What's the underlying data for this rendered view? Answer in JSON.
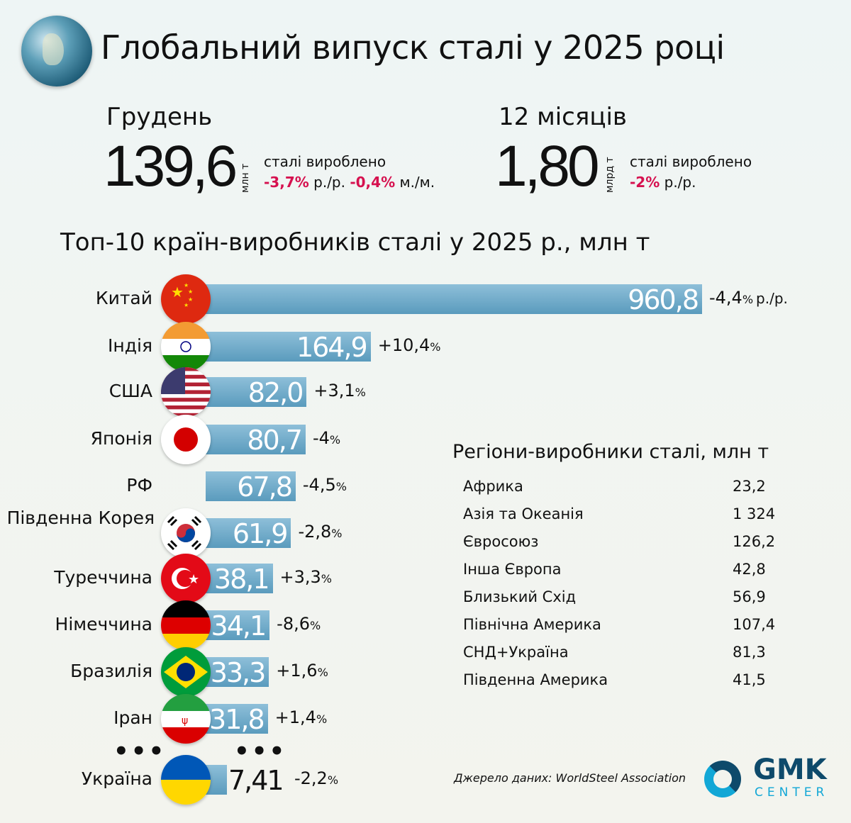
{
  "title": "Глобальний випуск сталі у 2025 році",
  "december": {
    "label": "Грудень",
    "value": "139,6",
    "unit": "млн т",
    "produced": "сталі вироблено",
    "yoy": "-3,7%",
    "yoy_suffix": "р./р.",
    "mom": "-0,4%",
    "mom_suffix": "м./м."
  },
  "year": {
    "label": "12 місяців",
    "value": "1,80",
    "unit": "млрд т",
    "produced": "сталі вироблено",
    "yoy": "-2%",
    "yoy_suffix": "р./р."
  },
  "chart_data": {
    "type": "bar",
    "title": "Топ-10 країн-виробників сталі у 2025 р., млн т",
    "categories": [
      "Китай",
      "Індія",
      "США",
      "Японія",
      "РФ",
      "Південна Корея",
      "Туреччина",
      "Німеччина",
      "Бразилія",
      "Іран",
      "Україна"
    ],
    "values": [
      960.8,
      164.9,
      82.0,
      80.7,
      67.8,
      61.9,
      38.1,
      34.1,
      33.3,
      31.8,
      7.41
    ],
    "value_labels": [
      "960,8",
      "164,9",
      "82,0",
      "80,7",
      "67,8",
      "61,9",
      "38,1",
      "34,1",
      "33,3",
      "31,8",
      "7,41"
    ],
    "changes": [
      "-4,4",
      "+10,4",
      "+3,1",
      "-4",
      "-4,5",
      "-2,8",
      "+3,3",
      "-8,6",
      "+1,6",
      "+1,4",
      "-2,2"
    ],
    "china_change_suffix": "р./р.",
    "flags": [
      "china",
      "india",
      "usa",
      "japan",
      "none",
      "south-korea",
      "turkey",
      "germany",
      "brazil",
      "iran",
      "ukraine"
    ],
    "bar_color": "#6aa8c8"
  },
  "ellipsis": "•••",
  "regions": {
    "title": "Регіони-виробники сталі, млн т",
    "items": [
      {
        "name": "Африка",
        "value": "23,2"
      },
      {
        "name": "Азія та Океанія",
        "value": "1 324"
      },
      {
        "name": "Євросоюз",
        "value": "126,2"
      },
      {
        "name": "Інша Європа",
        "value": "42,8"
      },
      {
        "name": "Близький Схід",
        "value": "56,9"
      },
      {
        "name": "Північна Америка",
        "value": "107,4"
      },
      {
        "name": "СНД+Україна",
        "value": "81,3"
      },
      {
        "name": "Південна Америка",
        "value": "41,5"
      }
    ]
  },
  "source": "Джерело даних: WorldSteel Association",
  "logo": {
    "line1": "GMK",
    "line2": "CENTER"
  },
  "colors": {
    "negative": "#d6114f",
    "logo_dark": "#0e4a6b",
    "logo_light": "#12a7d6"
  }
}
